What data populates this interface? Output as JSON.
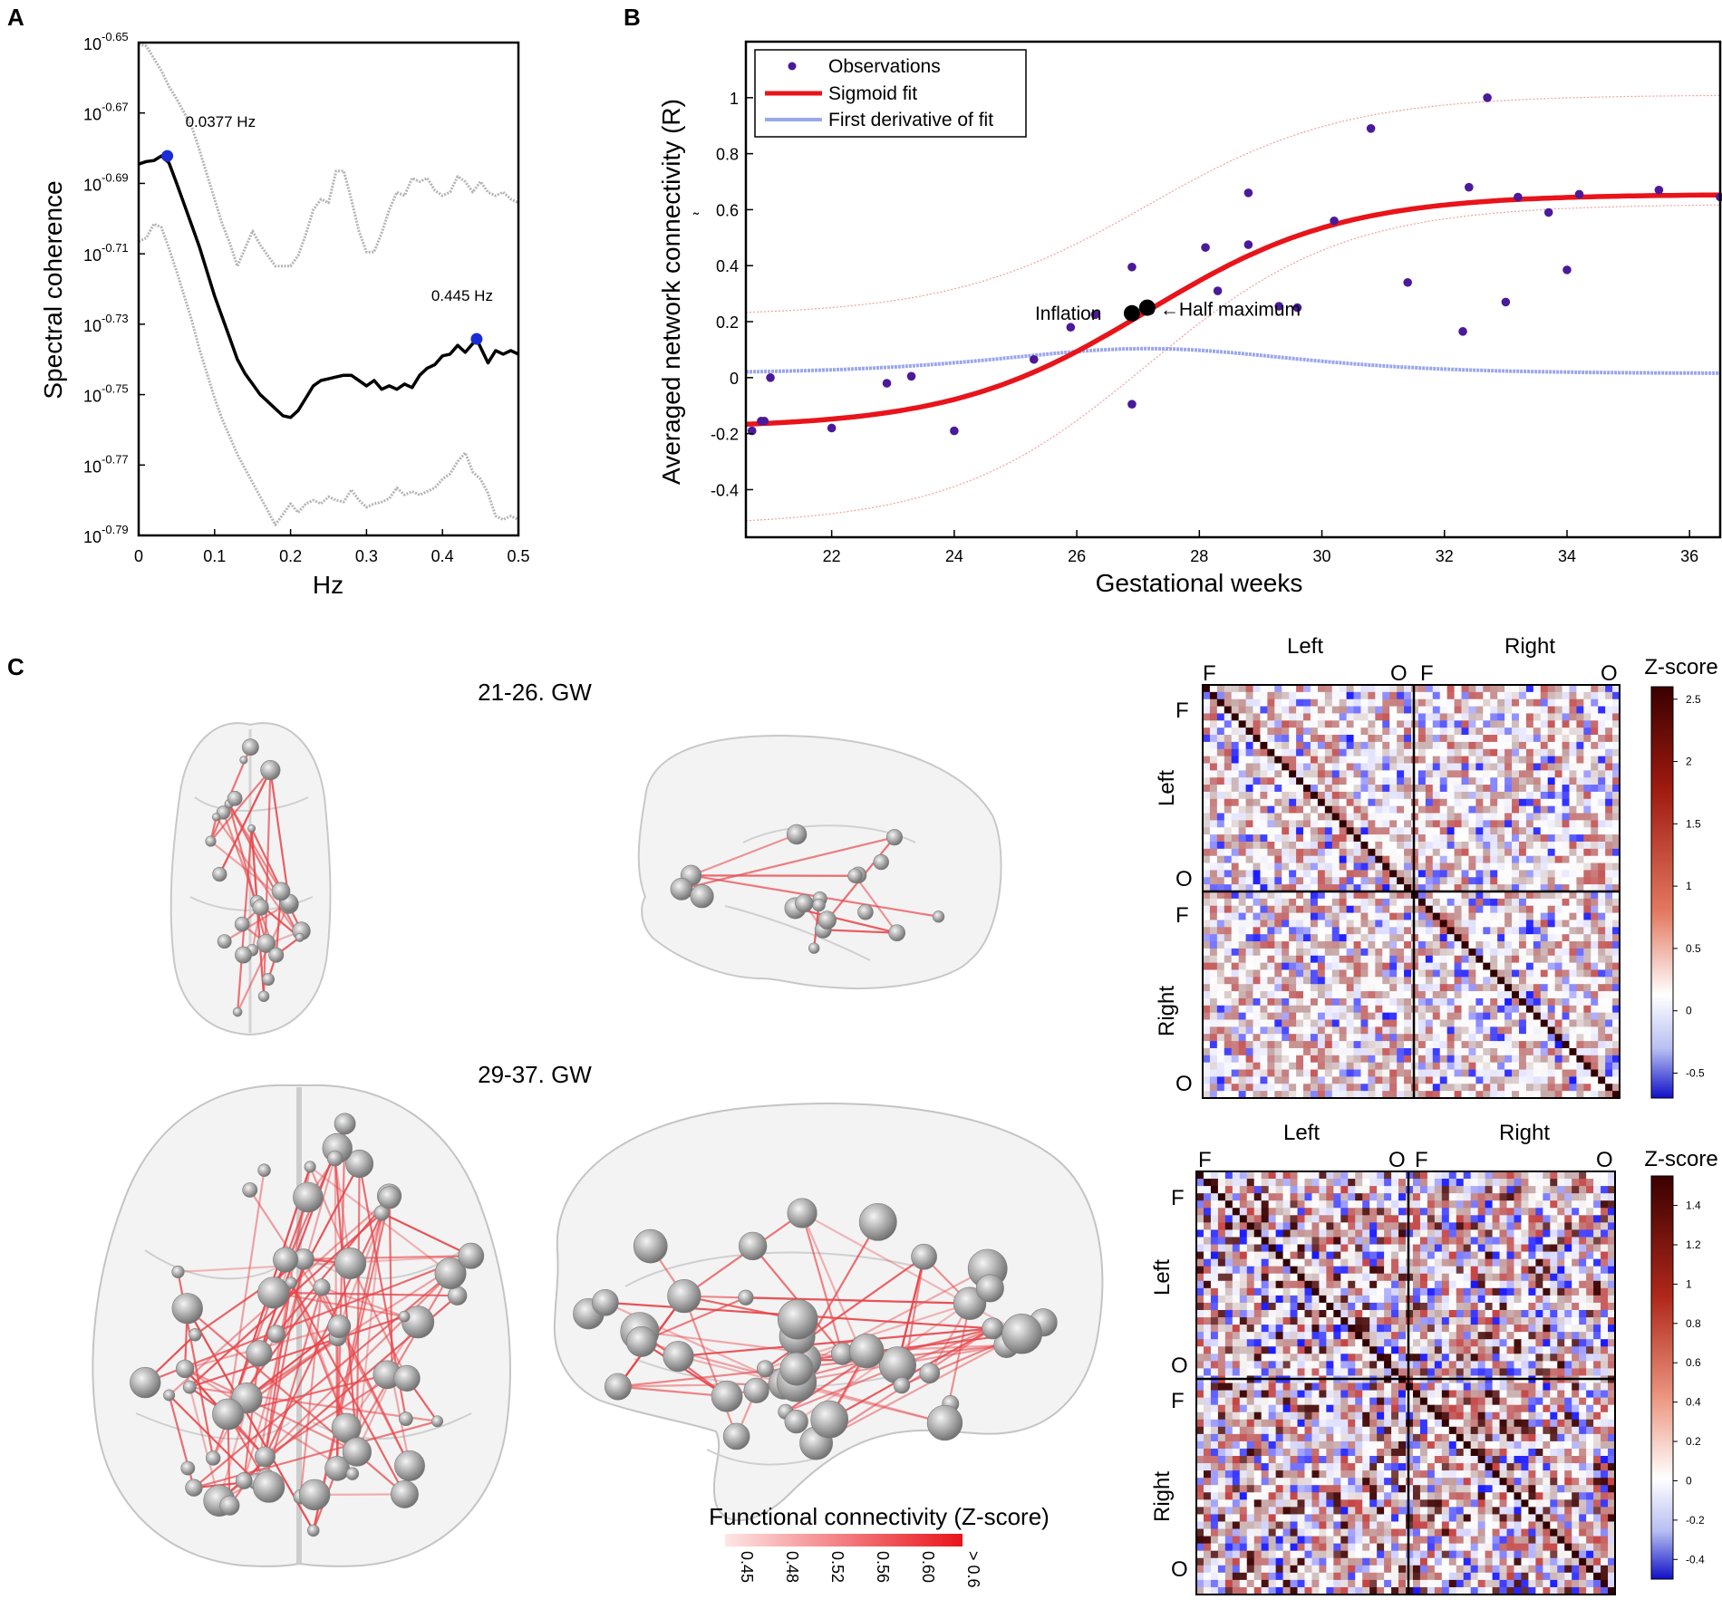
{
  "panels": {
    "a": "A",
    "b": "B",
    "c": "C"
  },
  "colors": {
    "blue_marker": "#1a2bd8",
    "fit_red": "#e8141a",
    "obs_purple": "#4a1a9a",
    "deriv_blue": "#9aa6ec",
    "node_gray": "#a9a9a9",
    "edge_red": "#e8454a"
  },
  "chart_data": [
    {
      "id": "panel-a",
      "type": "line",
      "title": "",
      "xlabel": "Hz",
      "ylabel": "Spectral coherence",
      "xlim": [
        0,
        0.5
      ],
      "xticks": [
        "0",
        "0.1",
        "0.2",
        "0.3",
        "0.4",
        "0.5"
      ],
      "ylim_log10": [
        -0.79,
        -0.65
      ],
      "ytick_base": "10",
      "ytick_exponents": [
        "-0.65",
        "-0.67",
        "-0.69",
        "-0.71",
        "-0.73",
        "-0.75",
        "-0.77",
        "-0.79"
      ],
      "series": [
        {
          "name": "coherence",
          "style": "black",
          "x": [
            0,
            0.01,
            0.02,
            0.03,
            0.04,
            0.05,
            0.06,
            0.07,
            0.08,
            0.09,
            0.1,
            0.11,
            0.12,
            0.13,
            0.14,
            0.15,
            0.16,
            0.17,
            0.18,
            0.19,
            0.2,
            0.21,
            0.22,
            0.23,
            0.24,
            0.25,
            0.26,
            0.27,
            0.28,
            0.29,
            0.3,
            0.31,
            0.32,
            0.33,
            0.34,
            0.35,
            0.36,
            0.37,
            0.38,
            0.39,
            0.4,
            0.41,
            0.42,
            0.43,
            0.44,
            0.445,
            0.45,
            0.46,
            0.47,
            0.48,
            0.49,
            0.5
          ],
          "y": [
            -0.6845,
            -0.6838,
            -0.6835,
            -0.6822,
            -0.6842,
            -0.69,
            -0.696,
            -0.702,
            -0.708,
            -0.715,
            -0.722,
            -0.728,
            -0.734,
            -0.74,
            -0.744,
            -0.747,
            -0.75,
            -0.752,
            -0.754,
            -0.756,
            -0.7565,
            -0.7545,
            -0.751,
            -0.7475,
            -0.746,
            -0.7455,
            -0.745,
            -0.7445,
            -0.7445,
            -0.746,
            -0.7475,
            -0.746,
            -0.7485,
            -0.7475,
            -0.7485,
            -0.747,
            -0.748,
            -0.7445,
            -0.7425,
            -0.7415,
            -0.739,
            -0.7385,
            -0.736,
            -0.738,
            -0.7355,
            -0.7342,
            -0.7365,
            -0.741,
            -0.7375,
            -0.7385,
            -0.7375,
            -0.7385
          ]
        },
        {
          "name": "upper bound",
          "style": "gray",
          "x": [
            0,
            0.01,
            0.02,
            0.03,
            0.04,
            0.05,
            0.06,
            0.07,
            0.08,
            0.09,
            0.1,
            0.11,
            0.12,
            0.13,
            0.14,
            0.15,
            0.16,
            0.17,
            0.18,
            0.19,
            0.2,
            0.21,
            0.22,
            0.23,
            0.24,
            0.25,
            0.26,
            0.27,
            0.28,
            0.29,
            0.3,
            0.31,
            0.32,
            0.33,
            0.34,
            0.35,
            0.36,
            0.37,
            0.38,
            0.39,
            0.4,
            0.41,
            0.42,
            0.43,
            0.44,
            0.45,
            0.46,
            0.47,
            0.48,
            0.49,
            0.5
          ],
          "y": [
            -0.6505,
            -0.651,
            -0.6545,
            -0.658,
            -0.6625,
            -0.666,
            -0.67,
            -0.674,
            -0.6805,
            -0.6875,
            -0.6945,
            -0.7015,
            -0.707,
            -0.7135,
            -0.7085,
            -0.7035,
            -0.7075,
            -0.7105,
            -0.7135,
            -0.7135,
            -0.7135,
            -0.7105,
            -0.7045,
            -0.6975,
            -0.6945,
            -0.6955,
            -0.6865,
            -0.6865,
            -0.6945,
            -0.7035,
            -0.7095,
            -0.7095,
            -0.704,
            -0.6975,
            -0.6925,
            -0.6935,
            -0.6885,
            -0.6895,
            -0.6885,
            -0.692,
            -0.6935,
            -0.6925,
            -0.688,
            -0.6895,
            -0.6925,
            -0.6895,
            -0.6925,
            -0.6935,
            -0.6925,
            -0.6945,
            -0.6955
          ]
        },
        {
          "name": "lower bound",
          "style": "gray",
          "x": [
            0,
            0.01,
            0.02,
            0.03,
            0.04,
            0.05,
            0.06,
            0.07,
            0.08,
            0.09,
            0.1,
            0.11,
            0.12,
            0.13,
            0.14,
            0.15,
            0.16,
            0.17,
            0.18,
            0.19,
            0.2,
            0.21,
            0.22,
            0.23,
            0.24,
            0.25,
            0.26,
            0.27,
            0.28,
            0.29,
            0.3,
            0.31,
            0.32,
            0.33,
            0.34,
            0.35,
            0.36,
            0.37,
            0.38,
            0.39,
            0.4,
            0.41,
            0.42,
            0.43,
            0.44,
            0.45,
            0.46,
            0.47,
            0.48,
            0.49,
            0.5
          ],
          "y": [
            -0.7065,
            -0.7055,
            -0.7015,
            -0.7025,
            -0.7085,
            -0.715,
            -0.722,
            -0.729,
            -0.737,
            -0.744,
            -0.751,
            -0.757,
            -0.762,
            -0.767,
            -0.771,
            -0.775,
            -0.779,
            -0.783,
            -0.787,
            -0.784,
            -0.781,
            -0.7835,
            -0.781,
            -0.78,
            -0.781,
            -0.779,
            -0.78,
            -0.7805,
            -0.777,
            -0.78,
            -0.782,
            -0.781,
            -0.7805,
            -0.7795,
            -0.7765,
            -0.7785,
            -0.7775,
            -0.7785,
            -0.7775,
            -0.7765,
            -0.774,
            -0.7725,
            -0.769,
            -0.7665,
            -0.772,
            -0.774,
            -0.778,
            -0.7845,
            -0.7855,
            -0.7845,
            -0.7855
          ]
        }
      ],
      "peaks": [
        {
          "x": 0.0377,
          "y": -0.6822,
          "label": "0.0377 Hz"
        },
        {
          "x": 0.445,
          "y": -0.7342,
          "label": "0.445 Hz"
        }
      ]
    },
    {
      "id": "panel-b",
      "type": "scatter",
      "title": "",
      "xlabel": "Gestational weeks",
      "ylabel": "Averaged network connectivity (R)",
      "xlim": [
        20.6,
        36.5
      ],
      "ylim": [
        -0.57,
        1.2
      ],
      "xticks": [
        "22",
        "24",
        "26",
        "28",
        "30",
        "32",
        "34",
        "36"
      ],
      "yticks": [
        "-0.4",
        "-0.2",
        "0",
        "0.2",
        "0.4",
        "0.6",
        "0.8",
        "1"
      ],
      "legend": [
        "Observations",
        "Sigmoid fit",
        "First derivative of fit"
      ],
      "legend_position": "top-left",
      "observations_x": [
        20.7,
        20.85,
        20.9,
        21,
        22,
        22.9,
        23.3,
        24,
        25.3,
        25.9,
        26.3,
        26.9,
        26.9,
        27.2,
        28.1,
        28.3,
        28.8,
        28.8,
        29.3,
        29.6,
        30.2,
        30.8,
        31.4,
        32.3,
        32.4,
        32.7,
        33,
        33.2,
        33.7,
        34,
        34.2,
        35.5,
        36.5
      ],
      "observations_y": [
        -0.19,
        -0.155,
        -0.155,
        0,
        -0.18,
        -0.02,
        0.005,
        -0.19,
        0.065,
        0.18,
        0.225,
        0.395,
        -0.095,
        0.24,
        0.465,
        0.31,
        0.475,
        0.66,
        0.255,
        0.25,
        0.56,
        0.89,
        0.34,
        0.165,
        0.68,
        1,
        0.27,
        0.645,
        0.59,
        0.385,
        0.655,
        0.67,
        0.645
      ],
      "fit": {
        "lower": -0.18,
        "upper": 0.655,
        "midpoint": 27.15,
        "scale": 1.6
      },
      "fit_band": {
        "lower_y_at_xlim": [
          -0.53,
          0.62
        ],
        "upper_y_at_xlim": [
          0.22,
          1.01
        ]
      },
      "inflation_point": {
        "x": 26.9,
        "y": 0.23,
        "label": "Inflation"
      },
      "half_maximum_point": {
        "x": 27.15,
        "y": 0.25,
        "label": "←Half maximum"
      },
      "tick_glyph": "˜"
    },
    {
      "id": "panel-c-colorbar",
      "type": "heatmap",
      "title": "Functional connectivity (Z-score)",
      "ticks": [
        "0.45",
        "0.48",
        "0.52",
        "0.56",
        "0.60",
        "> 0.6"
      ]
    },
    {
      "id": "matrix-top",
      "type": "heatmap",
      "group_labels": {
        "left": "Left",
        "right": "Right",
        "start": "F",
        "end": "O"
      },
      "colorbar_title": "Z-score",
      "colorbar_range": [
        -0.7,
        2.6
      ],
      "colorbar_ticks": [
        "2.5",
        "2",
        "1.5",
        "1",
        "0.5",
        "0",
        "-0.5"
      ],
      "size": 58
    },
    {
      "id": "matrix-bottom",
      "type": "heatmap",
      "group_labels": {
        "left": "Left",
        "right": "Right",
        "start": "F",
        "end": "O"
      },
      "colorbar_title": "Z-score",
      "colorbar_range": [
        -0.5,
        1.55
      ],
      "colorbar_ticks": [
        "1.4",
        "1.2",
        "1",
        "0.8",
        "0.6",
        "0.4",
        "0.2",
        "0",
        "-0.2",
        "-0.4"
      ],
      "size": 58
    }
  ],
  "brains": {
    "early_label": "21-26. GW",
    "late_label": "29-37. GW"
  }
}
